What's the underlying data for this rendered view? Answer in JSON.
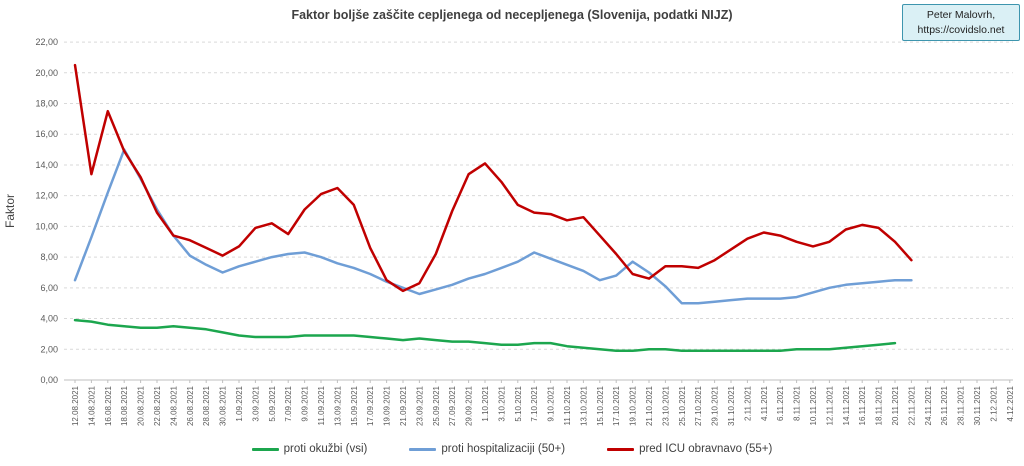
{
  "header": {
    "title": "Faktor boljše zaščite cepljenega od necepljenega (Slovenija, podatki NIJZ)",
    "attribution_line1": "Peter Malovrh,",
    "attribution_line2": "https://covidslo.net"
  },
  "y_axis": {
    "title": "Faktor",
    "tick_labels": [
      "0,00",
      "2,00",
      "4,00",
      "6,00",
      "8,00",
      "10,00",
      "12,00",
      "14,00",
      "16,00",
      "18,00",
      "20,00",
      "22,00"
    ],
    "min": 0,
    "max": 22,
    "step": 2
  },
  "legend": {
    "entries": [
      "proti okužbi (vsi)",
      "proti hospitalizaciji (50+)",
      "pred ICU obravnavo (55+)"
    ]
  },
  "colors": {
    "infection_green": "#1ca64e",
    "hospitalization_blue": "#6f9ed6",
    "icu_red": "#c00000",
    "grid": "#d9d9d9",
    "axis_line": "#bfbfbf",
    "axis_text": "#595959",
    "title_text": "#3f3f3f",
    "attribution_bg": "#daf0f5",
    "attribution_border": "#3d95ae"
  },
  "chart_data": {
    "type": "line",
    "title": "Faktor boljše zaščite cepljenega od necepljenega (Slovenija, podatki NIJZ)",
    "xlabel": "",
    "ylabel": "Faktor",
    "ylim": [
      0,
      22
    ],
    "grid": true,
    "grid_style": "dashed",
    "legend_position": "bottom",
    "categories": [
      "12.08.2021",
      "14.08.2021",
      "16.08.2021",
      "18.08.2021",
      "20.08.2021",
      "22.08.2021",
      "24.08.2021",
      "26.08.2021",
      "28.08.2021",
      "30.08.2021",
      "1.09.2021",
      "3.09.2021",
      "5.09.2021",
      "7.09.2021",
      "9.09.2021",
      "11.09.2021",
      "13.09.2021",
      "15.09.2021",
      "17.09.2021",
      "19.09.2021",
      "21.09.2021",
      "23.09.2021",
      "25.09.2021",
      "27.09.2021",
      "29.09.2021",
      "1.10.2021",
      "3.10.2021",
      "5.10.2021",
      "7.10.2021",
      "9.10.2021",
      "11.10.2021",
      "13.10.2021",
      "15.10.2021",
      "17.10.2021",
      "19.10.2021",
      "21.10.2021",
      "23.10.2021",
      "25.10.2021",
      "27.10.2021",
      "29.10.2021",
      "31.10.2021",
      "2.11.2021",
      "4.11.2021",
      "6.11.2021",
      "8.11.2021",
      "10.11.2021",
      "12.11.2021",
      "14.11.2021",
      "16.11.2021",
      "18.11.2021",
      "20.11.2021",
      "22.11.2021",
      "24.11.2021",
      "26.11.2021",
      "28.11.2021",
      "30.11.2021",
      "2.12.2021",
      "4.12.2021"
    ],
    "series": [
      {
        "name": "proti okužbi (vsi)",
        "color": "#1ca64e",
        "values": [
          3.9,
          3.8,
          3.6,
          3.5,
          3.4,
          3.4,
          3.5,
          3.4,
          3.3,
          3.1,
          2.9,
          2.8,
          2.8,
          2.8,
          2.9,
          2.9,
          2.9,
          2.9,
          2.8,
          2.7,
          2.6,
          2.7,
          2.6,
          2.5,
          2.5,
          2.4,
          2.3,
          2.3,
          2.4,
          2.4,
          2.2,
          2.1,
          2.0,
          1.9,
          1.9,
          2.0,
          2.0,
          1.9,
          1.9,
          1.9,
          1.9,
          1.9,
          1.9,
          1.9,
          2.0,
          2.0,
          2.0,
          2.1,
          2.2,
          2.3,
          2.4
        ]
      },
      {
        "name": "proti hospitalizaciji (50+)",
        "color": "#6f9ed6",
        "values": [
          6.5,
          9.3,
          12.2,
          15.0,
          13.1,
          11.1,
          9.4,
          8.1,
          7.5,
          7.0,
          7.4,
          7.7,
          8.0,
          8.2,
          8.3,
          8.0,
          7.6,
          7.3,
          6.9,
          6.4,
          6.0,
          5.6,
          5.9,
          6.2,
          6.6,
          6.9,
          7.3,
          7.7,
          8.3,
          7.9,
          7.5,
          7.1,
          6.5,
          6.8,
          7.7,
          7.0,
          6.1,
          5.0,
          5.0,
          5.1,
          5.2,
          5.3,
          5.3,
          5.3,
          5.4,
          5.7,
          6.0,
          6.2,
          6.3,
          6.4,
          6.5,
          6.5
        ]
      },
      {
        "name": "pred ICU obravnavo (55+)",
        "color": "#c00000",
        "values": [
          20.5,
          13.4,
          17.5,
          14.9,
          13.2,
          10.9,
          9.4,
          9.1,
          8.6,
          8.1,
          8.7,
          9.9,
          10.2,
          9.5,
          11.1,
          12.1,
          12.5,
          11.4,
          8.6,
          6.5,
          5.8,
          6.3,
          8.2,
          11.0,
          13.4,
          14.1,
          12.9,
          11.4,
          10.9,
          10.8,
          10.4,
          10.6,
          9.4,
          8.2,
          6.9,
          6.6,
          7.4,
          7.4,
          7.3,
          7.8,
          8.5,
          9.2,
          9.6,
          9.4,
          9.0,
          8.7,
          9.0,
          9.8,
          10.1,
          9.9,
          9.0,
          7.8
        ]
      }
    ]
  }
}
